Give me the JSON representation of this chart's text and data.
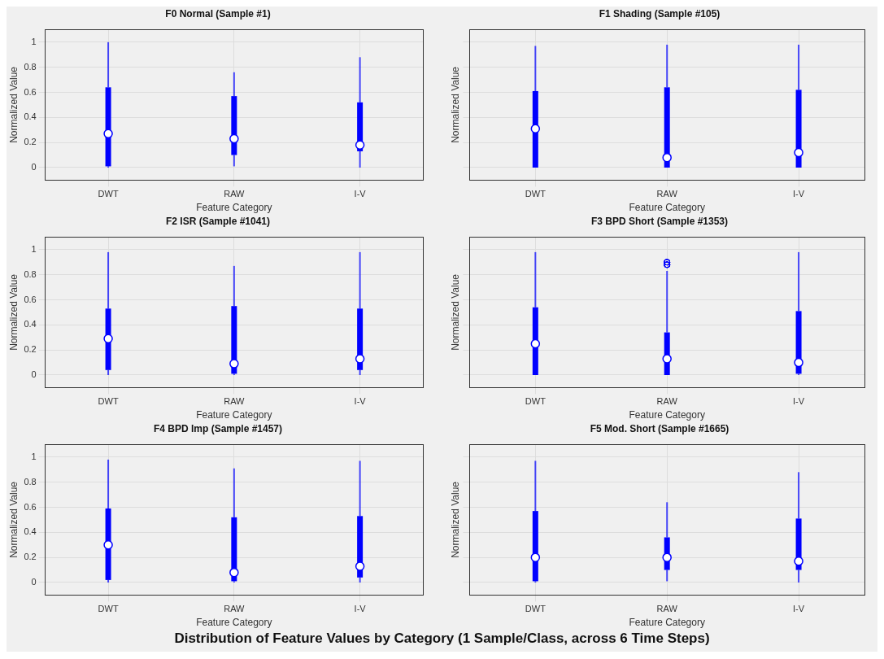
{
  "chart_data": [
    {
      "type": "box",
      "title": "F0 Normal (Sample #1)",
      "xlabel": "Feature Category",
      "ylabel": "Normalized Value",
      "categories": [
        "DWT",
        "RAW",
        "I-V"
      ],
      "color": "#0000ff",
      "ylim": [
        -0.1,
        1.1
      ],
      "yticks": [
        0,
        0.2,
        0.4,
        0.6,
        0.8,
        1
      ],
      "grid": true,
      "boxes": [
        {
          "low": 0,
          "q1": 0.01,
          "median": 0.27,
          "q3": 0.64,
          "high": 1.0
        },
        {
          "low": 0.01,
          "q1": 0.1,
          "median": 0.23,
          "q3": 0.57,
          "high": 0.76
        },
        {
          "low": 0,
          "q1": 0.13,
          "median": 0.18,
          "q3": 0.52,
          "high": 0.88
        }
      ]
    },
    {
      "type": "box",
      "title": "F1 Shading (Sample #105)",
      "xlabel": "Feature Category",
      "ylabel": "Normalized Value",
      "categories": [
        "DWT",
        "RAW",
        "I-V"
      ],
      "color": "#0000ff",
      "ylim": [
        -0.1,
        1.1
      ],
      "yticks": [
        0,
        0.2,
        0.4,
        0.6,
        0.8,
        1
      ],
      "grid": true,
      "tick_labels": "x",
      "boxes": [
        {
          "low": 0,
          "q1": 0,
          "median": 0.31,
          "q3": 0.61,
          "high": 0.97
        },
        {
          "low": 0,
          "q1": 0,
          "median": 0.08,
          "q3": 0.64,
          "high": 0.98
        },
        {
          "low": 0,
          "q1": 0,
          "median": 0.12,
          "q3": 0.62,
          "high": 0.98
        }
      ]
    },
    {
      "type": "box",
      "title": "F2 ISR (Sample #1041)",
      "xlabel": "Feature Category",
      "ylabel": "Normalized Value",
      "categories": [
        "DWT",
        "RAW",
        "I-V"
      ],
      "color": "#0000ff",
      "ylim": [
        -0.1,
        1.1
      ],
      "yticks": [
        0,
        0.2,
        0.4,
        0.6,
        0.8,
        1
      ],
      "grid": true,
      "boxes": [
        {
          "low": 0,
          "q1": 0.04,
          "median": 0.29,
          "q3": 0.53,
          "high": 0.98
        },
        {
          "low": 0,
          "q1": 0.01,
          "median": 0.09,
          "q3": 0.55,
          "high": 0.87
        },
        {
          "low": 0,
          "q1": 0.04,
          "median": 0.13,
          "q3": 0.53,
          "high": 0.98
        }
      ]
    },
    {
      "type": "box",
      "title": "F3 BPD Short (Sample #1353)",
      "xlabel": "Feature Category",
      "ylabel": "Normalized Value",
      "categories": [
        "DWT",
        "RAW",
        "I-V"
      ],
      "color": "#0000ff",
      "ylim": [
        -0.1,
        1.1
      ],
      "yticks": [
        0,
        0.2,
        0.4,
        0.6,
        0.8,
        1
      ],
      "grid": true,
      "tick_labels": "x",
      "boxes": [
        {
          "low": 0,
          "q1": 0,
          "median": 0.25,
          "q3": 0.54,
          "high": 0.98
        },
        {
          "low": 0,
          "q1": 0,
          "median": 0.13,
          "q3": 0.34,
          "high": 0.83,
          "outliers": [
            0.9,
            0.88,
            0.88,
            0.88,
            0.9,
            0.9,
            0.9,
            0.88,
            0.88
          ]
        },
        {
          "low": 0,
          "q1": 0.01,
          "median": 0.1,
          "q3": 0.51,
          "high": 0.98
        }
      ]
    },
    {
      "type": "box",
      "title": "F4 BPD Imp (Sample #1457)",
      "xlabel": "Feature Category",
      "ylabel": "Normalized Value",
      "categories": [
        "DWT",
        "RAW",
        "I-V"
      ],
      "color": "#0000ff",
      "ylim": [
        -0.1,
        1.1
      ],
      "yticks": [
        0,
        0.2,
        0.4,
        0.6,
        0.8,
        1
      ],
      "grid": true,
      "boxes": [
        {
          "low": 0,
          "q1": 0.02,
          "median": 0.3,
          "q3": 0.59,
          "high": 0.98
        },
        {
          "low": 0,
          "q1": 0.01,
          "median": 0.08,
          "q3": 0.52,
          "high": 0.91
        },
        {
          "low": 0,
          "q1": 0.04,
          "median": 0.13,
          "q3": 0.53,
          "high": 0.97
        }
      ]
    },
    {
      "type": "box",
      "title": "F5 Mod. Short (Sample #1665)",
      "xlabel": "Feature Category",
      "ylabel": "Normalized Value",
      "categories": [
        "DWT",
        "RAW",
        "I-V"
      ],
      "color": "#0000ff",
      "ylim": [
        -0.1,
        1.1
      ],
      "yticks": [
        0,
        0.2,
        0.4,
        0.6,
        0.8,
        1
      ],
      "grid": true,
      "tick_labels": "x",
      "boxes": [
        {
          "low": 0,
          "q1": 0.01,
          "median": 0.2,
          "q3": 0.57,
          "high": 0.97
        },
        {
          "low": 0.01,
          "q1": 0.1,
          "median": 0.2,
          "q3": 0.36,
          "high": 0.64
        },
        {
          "low": 0,
          "q1": 0.1,
          "median": 0.17,
          "q3": 0.51,
          "high": 0.88
        }
      ]
    },
    {
      "type": "other",
      "title": "Distribution of Feature Values by Category (1 Sample/Class, across 6 Time Steps)"
    }
  ]
}
